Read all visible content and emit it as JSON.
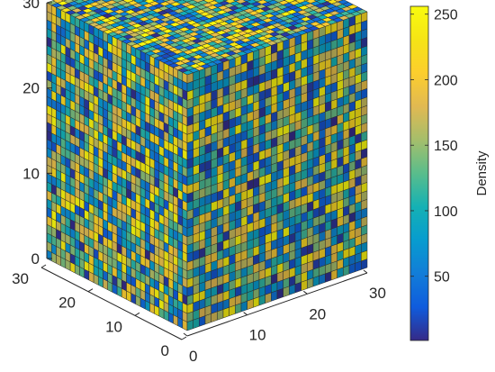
{
  "chart_data": {
    "type": "heatmap",
    "title": "",
    "grid_size": [
      30,
      30,
      30
    ],
    "axes": {
      "x": {
        "ticks": [
          0,
          10,
          20,
          30
        ]
      },
      "y": {
        "ticks": [
          0,
          10,
          20,
          30
        ]
      },
      "z": {
        "ticks": [
          0,
          10,
          20,
          30
        ]
      }
    },
    "colorbar": {
      "label": "Density",
      "colormap": "parula",
      "range": [
        1,
        256
      ],
      "ticks": [
        50,
        100,
        150,
        200,
        250
      ]
    },
    "grid": false
  },
  "colors": {
    "cell_edge": "#2a2a2a",
    "axis": "#262626"
  }
}
